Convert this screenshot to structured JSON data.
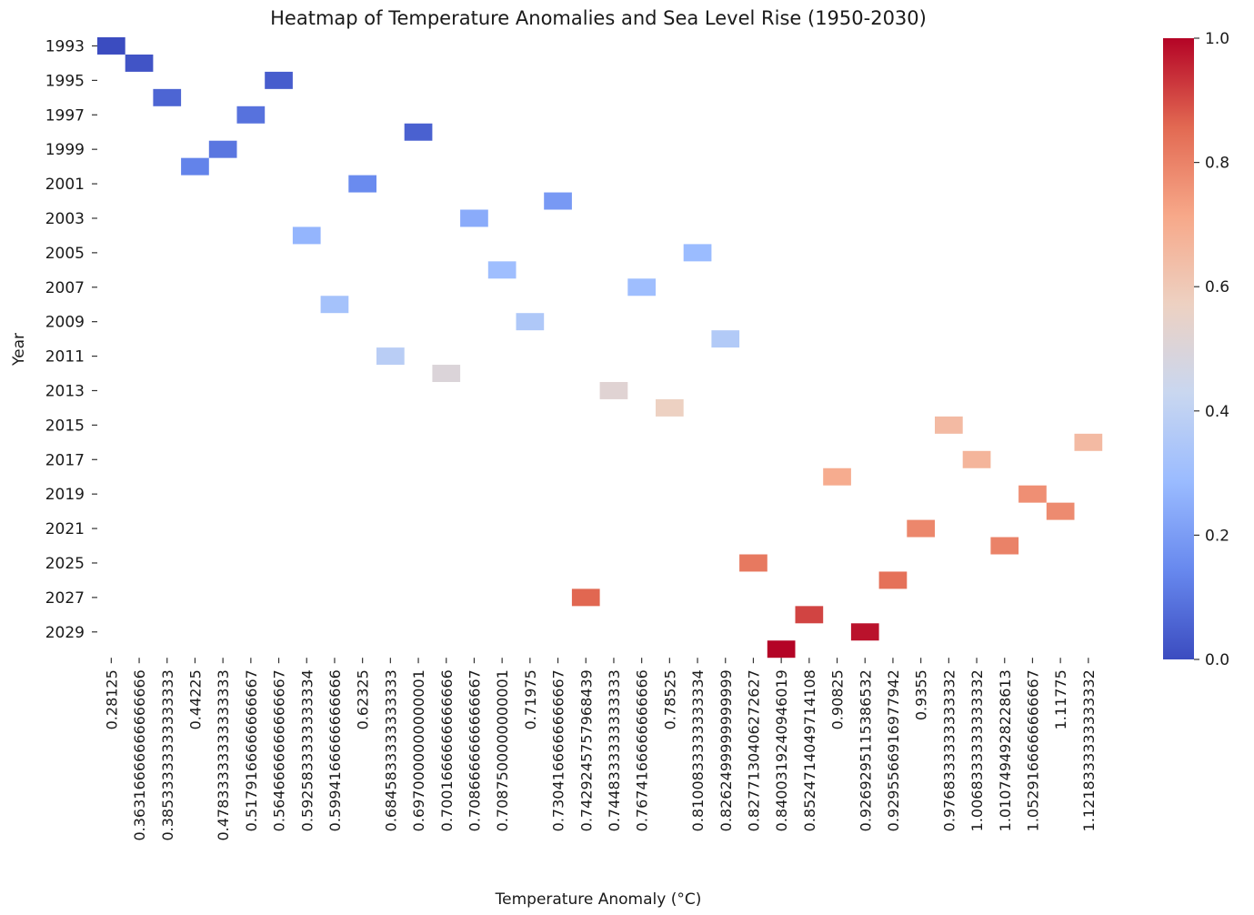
{
  "chart_data": {
    "type": "heatmap",
    "title": "Heatmap of Temperature Anomalies and Sea Level Rise (1950-2030)",
    "xlabel": "Temperature Anomaly (°C)",
    "ylabel": "Year",
    "x_categories": [
      "0.28125",
      "0.36316666666666666",
      "0.38533333333333333",
      "0.44225",
      "0.47833333333333333",
      "0.5179166666666667",
      "0.5646666666666667",
      "0.5925833333333334",
      "0.5994166666666666",
      "0.62325",
      "0.6845833333333333",
      "0.6970000000000001",
      "0.7001666666666666",
      "0.7086666666666667",
      "0.7087500000000001",
      "0.71975",
      "0.7304166666666667",
      "0.7429245757968439",
      "0.7448333333333333",
      "0.7674166666666666",
      "0.78525",
      "0.8100833333333334",
      "0.8262499999999999",
      "0.8277130406272627",
      "0.8400319240946019",
      "0.8524714049714108",
      "0.90825",
      "0.9269295115386532",
      "0.9295566916977942",
      "0.9355",
      "0.9768333333333332",
      "1.0068333333333332",
      "1.0107494928228613",
      "1.0529166666666667",
      "1.11775",
      "1.1218333333333332"
    ],
    "y_categories": [
      "1993",
      "1994",
      "1995",
      "1996",
      "1997",
      "1998",
      "1999",
      "2000",
      "2001",
      "2002",
      "2003",
      "2004",
      "2005",
      "2006",
      "2007",
      "2008",
      "2009",
      "2010",
      "2011",
      "2012",
      "2013",
      "2014",
      "2015",
      "2016",
      "2017",
      "2018",
      "2019",
      "2020",
      "2021",
      "2022",
      "2025",
      "2026",
      "2027",
      "2028",
      "2029",
      "2030"
    ],
    "y_tick_labels": [
      "1993",
      "1995",
      "1997",
      "1999",
      "2001",
      "2003",
      "2005",
      "2007",
      "2009",
      "2011",
      "2013",
      "2015",
      "2017",
      "2019",
      "2021",
      "2025",
      "2027",
      "2029"
    ],
    "cells": [
      {
        "year": "1993",
        "x": "0.28125",
        "value": 0.0
      },
      {
        "year": "1994",
        "x": "0.36316666666666666",
        "value": 0.02
      },
      {
        "year": "1995",
        "x": "0.5646666666666667",
        "value": 0.04
      },
      {
        "year": "1996",
        "x": "0.38533333333333333",
        "value": 0.06
      },
      {
        "year": "1997",
        "x": "0.5179166666666667",
        "value": 0.09
      },
      {
        "year": "1998",
        "x": "0.6970000000000001",
        "value": 0.05
      },
      {
        "year": "1999",
        "x": "0.47833333333333333",
        "value": 0.1
      },
      {
        "year": "2000",
        "x": "0.44225",
        "value": 0.13
      },
      {
        "year": "2001",
        "x": "0.62325",
        "value": 0.15
      },
      {
        "year": "2002",
        "x": "0.7304166666666667",
        "value": 0.19
      },
      {
        "year": "2003",
        "x": "0.7086666666666667",
        "value": 0.24
      },
      {
        "year": "2004",
        "x": "0.5925833333333334",
        "value": 0.27
      },
      {
        "year": "2005",
        "x": "0.8100833333333334",
        "value": 0.29
      },
      {
        "year": "2006",
        "x": "0.7087500000000001",
        "value": 0.3
      },
      {
        "year": "2007",
        "x": "0.7674166666666666",
        "value": 0.3
      },
      {
        "year": "2008",
        "x": "0.5994166666666666",
        "value": 0.32
      },
      {
        "year": "2009",
        "x": "0.71975",
        "value": 0.35
      },
      {
        "year": "2010",
        "x": "0.8262499999999999",
        "value": 0.36
      },
      {
        "year": "2011",
        "x": "0.6845833333333333",
        "value": 0.38
      },
      {
        "year": "2012",
        "x": "0.7001666666666666",
        "value": 0.5
      },
      {
        "year": "2013",
        "x": "0.7448333333333333",
        "value": 0.52
      },
      {
        "year": "2014",
        "x": "0.78525",
        "value": 0.57
      },
      {
        "year": "2015",
        "x": "0.9768333333333332",
        "value": 0.65
      },
      {
        "year": "2016",
        "x": "1.1218333333333332",
        "value": 0.65
      },
      {
        "year": "2017",
        "x": "1.0068333333333332",
        "value": 0.67
      },
      {
        "year": "2018",
        "x": "0.90825",
        "value": 0.7
      },
      {
        "year": "2019",
        "x": "1.0529166666666667",
        "value": 0.77
      },
      {
        "year": "2020",
        "x": "1.11775",
        "value": 0.78
      },
      {
        "year": "2021",
        "x": "0.9355",
        "value": 0.79
      },
      {
        "year": "2022",
        "x": "1.0107494928228613",
        "value": 0.8
      },
      {
        "year": "2025",
        "x": "0.8277130406272627",
        "value": 0.82
      },
      {
        "year": "2026",
        "x": "0.9295566916977942",
        "value": 0.84
      },
      {
        "year": "2027",
        "x": "0.7429245757968439",
        "value": 0.86
      },
      {
        "year": "2028",
        "x": "0.8524714049714108",
        "value": 0.91
      },
      {
        "year": "2029",
        "x": "0.9269295115386532",
        "value": 0.98
      },
      {
        "year": "2030",
        "x": "0.8400319240946019",
        "value": 1.0
      }
    ],
    "colorbar": {
      "colormap": "coolwarm",
      "range": [
        0.0,
        1.0
      ],
      "tick_values": [
        0.0,
        0.2,
        0.4,
        0.6,
        0.8,
        1.0
      ],
      "tick_labels": [
        "0.0",
        "0.2",
        "0.4",
        "0.6",
        "0.8",
        "1.0"
      ],
      "stops": [
        "#3b4cc0",
        "#6788ee",
        "#9abbff",
        "#c9d7f0",
        "#edd1c2",
        "#f7a889",
        "#e26952",
        "#b40426"
      ]
    },
    "grid": false,
    "legend": "colorbar-right"
  }
}
